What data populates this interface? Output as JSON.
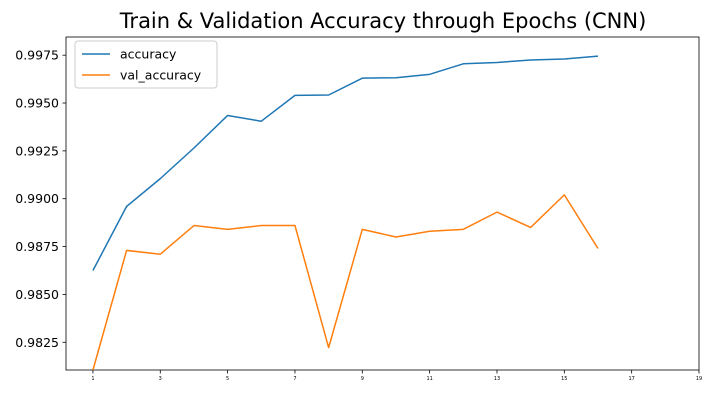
{
  "chart_data": {
    "type": "line",
    "title": "Train & Validation Accuracy through Epochs (CNN)",
    "xlabel": "",
    "ylabel": "",
    "xlim": [
      0.2,
      19
    ],
    "ylim": [
      0.98105,
      0.99845
    ],
    "x_ticks": [
      1,
      3,
      5,
      7,
      9,
      11,
      13,
      15,
      17,
      19
    ],
    "y_ticks": [
      0.9825,
      0.985,
      0.9875,
      0.99,
      0.9925,
      0.995,
      0.9975
    ],
    "y_tick_labels": [
      "0.9825",
      "0.9850",
      "0.9875",
      "0.9900",
      "0.9925",
      "0.9950",
      "0.9975"
    ],
    "grid": false,
    "legend": "upper-left",
    "x": [
      1,
      2,
      3,
      4,
      5,
      6,
      7,
      8,
      9,
      10,
      11,
      12,
      13,
      14,
      15,
      16
    ],
    "series": [
      {
        "name": "accuracy",
        "color": "#1f77b4",
        "values": [
          0.98625,
          0.9896,
          0.99105,
          0.99265,
          0.99435,
          0.99405,
          0.9954,
          0.99542,
          0.9963,
          0.99632,
          0.9965,
          0.99705,
          0.99712,
          0.99725,
          0.9973,
          0.99745
        ]
      },
      {
        "name": "val_accuracy",
        "color": "#ff7f0e",
        "values": [
          0.98105,
          0.9873,
          0.9871,
          0.9886,
          0.9884,
          0.9886,
          0.9886,
          0.98222,
          0.9884,
          0.988,
          0.9883,
          0.9884,
          0.9893,
          0.9885,
          0.9902,
          0.9874
        ]
      }
    ]
  }
}
